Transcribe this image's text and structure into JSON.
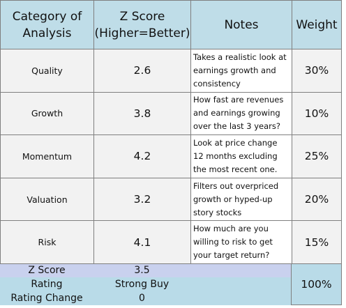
{
  "header": {
    "columns": [
      "Category of Analysis",
      "Z Score (Higher=Better)",
      "Notes",
      "Weight"
    ]
  },
  "table": {
    "rows": [
      [
        "Quality",
        "2.6",
        "Takes a realistic look at earnings growth and consistency",
        "30%"
      ],
      [
        "Growth",
        "3.8",
        "How fast are revenues and earnings growing over the last 3 years?",
        "10%"
      ],
      [
        "Momentum",
        "4.2",
        "Look at price  change 12 months excluding the most recent one.",
        "25%"
      ],
      [
        "Valuation",
        "3.2",
        "Filters out overpriced growth or hyped-up story stocks",
        "20%"
      ],
      [
        "Risk",
        "4.1",
        "How much are you willing to risk to get your target return?",
        "15%"
      ]
    ]
  },
  "summary": {
    "z_score": {
      "label": "Z Score",
      "value": "3.5"
    },
    "rating": {
      "label": "Rating",
      "value": "Strong Buy"
    },
    "rating_change": {
      "label": "Rating Change",
      "value": "0"
    },
    "total_weight": "100%"
  }
}
